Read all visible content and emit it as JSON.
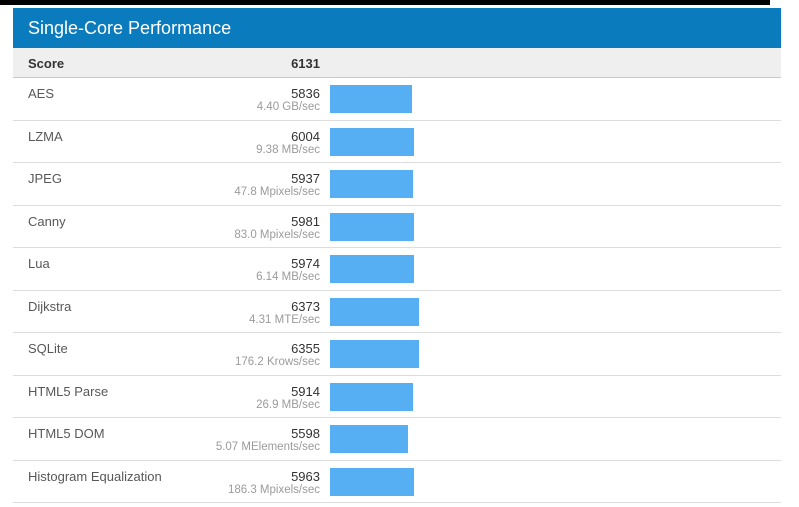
{
  "header": {
    "title": "Single-Core Performance"
  },
  "summary": {
    "label": "Score",
    "value": "6131"
  },
  "benchmarks": [
    {
      "name": "AES",
      "score": 5836,
      "rate": "4.40 GB/sec"
    },
    {
      "name": "LZMA",
      "score": 6004,
      "rate": "9.38 MB/sec"
    },
    {
      "name": "JPEG",
      "score": 5937,
      "rate": "47.8 Mpixels/sec"
    },
    {
      "name": "Canny",
      "score": 5981,
      "rate": "83.0 Mpixels/sec"
    },
    {
      "name": "Lua",
      "score": 5974,
      "rate": "6.14 MB/sec"
    },
    {
      "name": "Dijkstra",
      "score": 6373,
      "rate": "4.31 MTE/sec"
    },
    {
      "name": "SQLite",
      "score": 6355,
      "rate": "176.2 Krows/sec"
    },
    {
      "name": "HTML5 Parse",
      "score": 5914,
      "rate": "26.9 MB/sec"
    },
    {
      "name": "HTML5 DOM",
      "score": 5598,
      "rate": "5.07 MElements/sec"
    },
    {
      "name": "Histogram Equalization",
      "score": 5963,
      "rate": "186.3 Mpixels/sec"
    }
  ],
  "colors": {
    "header_bg": "#0a7cbe",
    "bar_fill": "#55aff2",
    "score_row_bg": "#efefef",
    "row_border": "#dddddd"
  },
  "chart_data": {
    "type": "bar",
    "orientation": "horizontal",
    "title": "Single-Core Performance",
    "overall_score_label": "Score",
    "overall_score": 6131,
    "categories": [
      "AES",
      "LZMA",
      "JPEG",
      "Canny",
      "Lua",
      "Dijkstra",
      "SQLite",
      "HTML5 Parse",
      "HTML5 DOM",
      "Histogram Equalization"
    ],
    "values": [
      5836,
      6004,
      5937,
      5981,
      5974,
      6373,
      6355,
      5914,
      5598,
      5963
    ],
    "rate_labels": [
      "4.40 GB/sec",
      "9.38 MB/sec",
      "47.8 Mpixels/sec",
      "83.0 Mpixels/sec",
      "6.14 MB/sec",
      "4.31 MTE/sec",
      "176.2 Krows/sec",
      "26.9 MB/sec",
      "5.07 MElements/sec",
      "186.3 Mpixels/sec"
    ],
    "xlim": [
      0,
      6373
    ],
    "grid": false,
    "legend": false
  }
}
